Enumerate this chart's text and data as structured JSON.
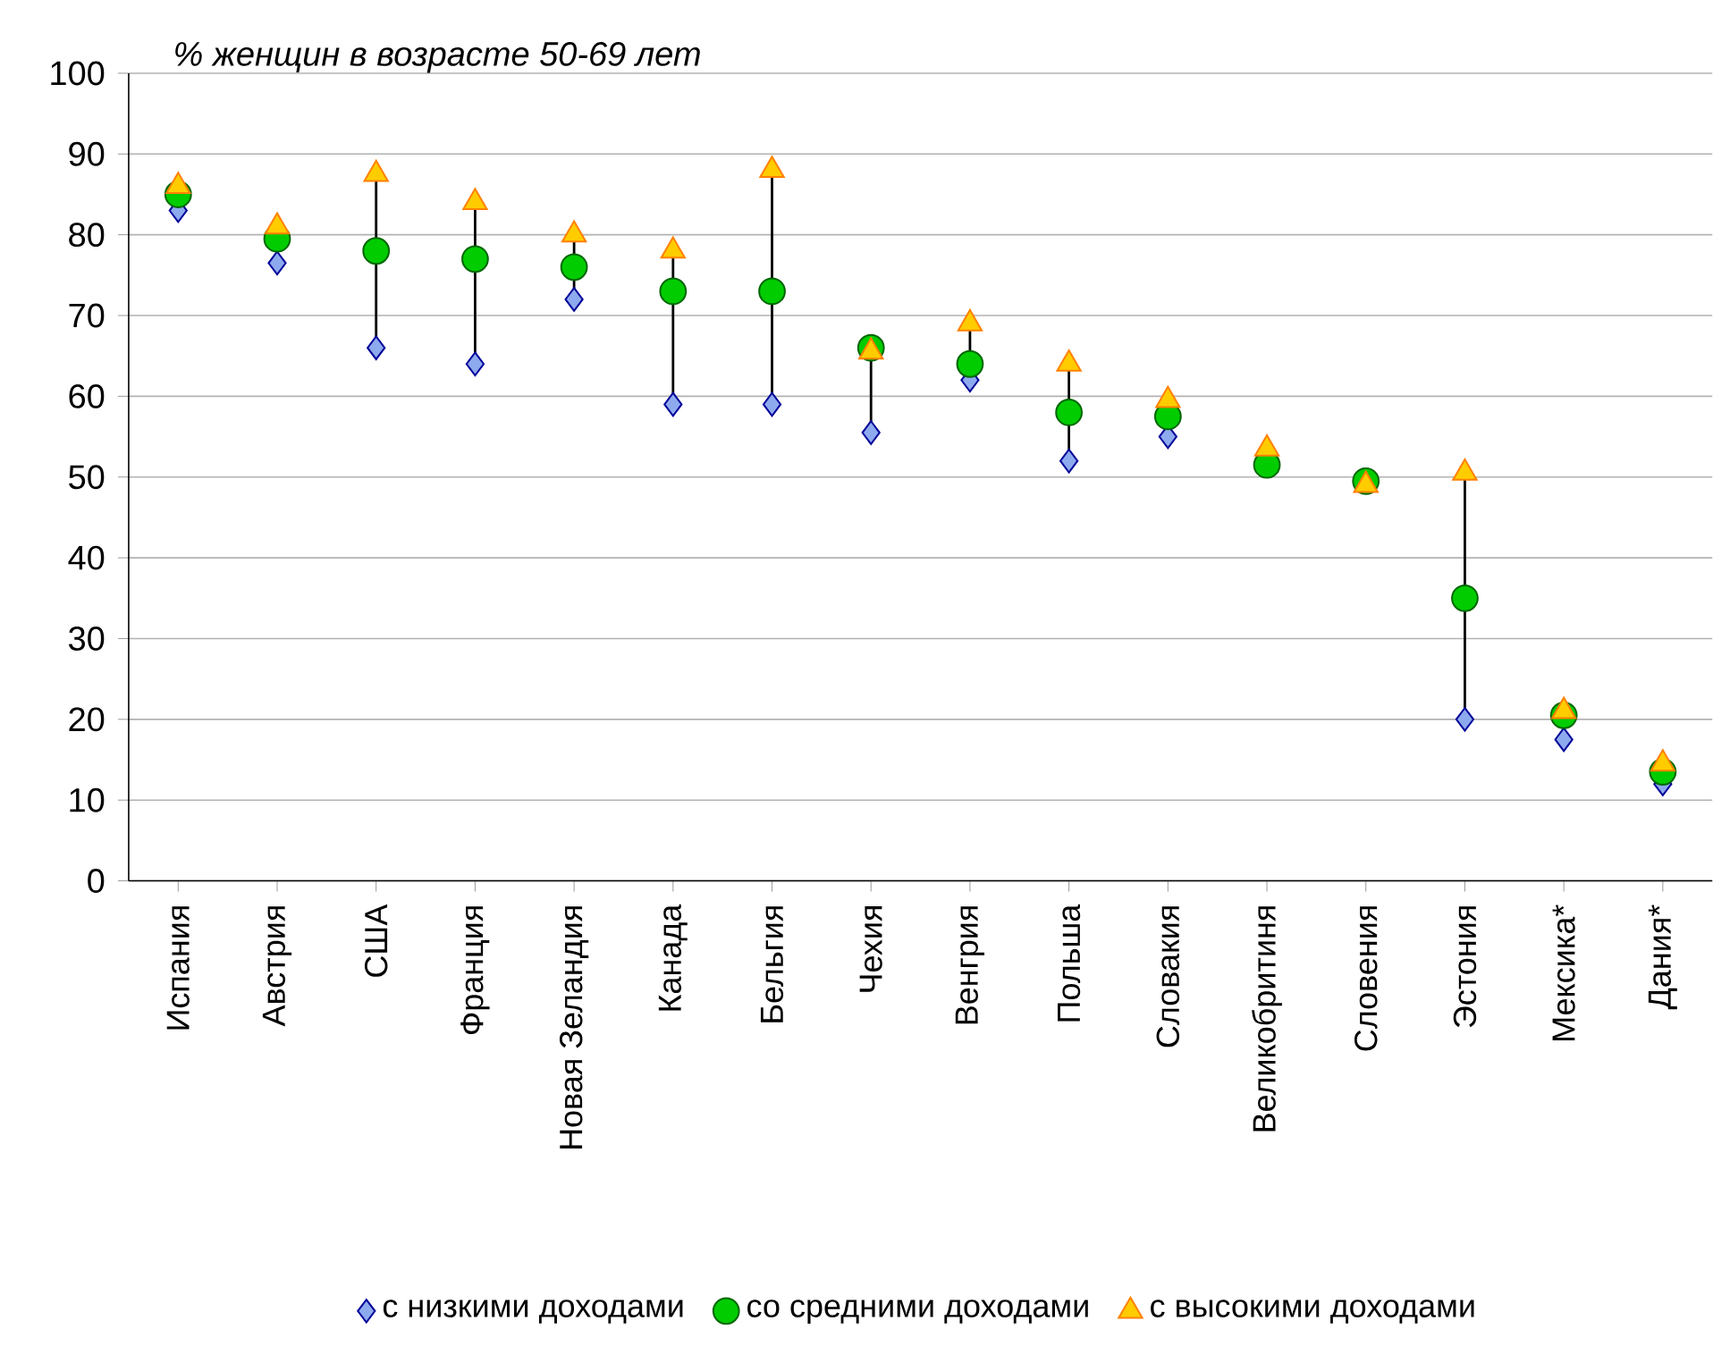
{
  "chart_data": {
    "type": "scatter",
    "title": "% женщин в возрасте 50-69 лет",
    "categories": [
      "Испания",
      "Австрия",
      "США",
      "Франция",
      "Новая Зеландия",
      "Канада",
      "Бельгия",
      "Чехия",
      "Венгрия",
      "Польша",
      "Словакия",
      "Великобритиня",
      "Словения",
      "Эстония",
      "Мексика*",
      "Дания*"
    ],
    "series": [
      {
        "name": "с низкими доходами",
        "color": "#8eaaee",
        "marker": "diamond",
        "values": [
          83,
          76.5,
          66,
          64,
          72,
          59,
          59,
          55.5,
          62,
          52,
          55,
          null,
          null,
          20,
          17.5,
          12
        ]
      },
      {
        "name": "со средними доходами",
        "color": "#00cc00",
        "marker": "circle",
        "values": [
          85,
          79.5,
          78,
          77,
          76,
          73,
          73,
          66,
          64,
          58,
          57.5,
          51.5,
          49.5,
          35,
          20.5,
          13.5
        ]
      },
      {
        "name": "с высокими доходами",
        "color": "#ffcc00",
        "marker": "triangle",
        "values": [
          86,
          81,
          87.5,
          84,
          80,
          78,
          88,
          65.5,
          69,
          64,
          59.5,
          53.5,
          49,
          50.5,
          21,
          14.5
        ]
      }
    ],
    "ylim": [
      0,
      100
    ],
    "yticks": [
      0,
      10,
      20,
      30,
      40,
      50,
      60,
      70,
      80,
      90,
      100
    ],
    "grid": "y",
    "legend": "bottom"
  }
}
